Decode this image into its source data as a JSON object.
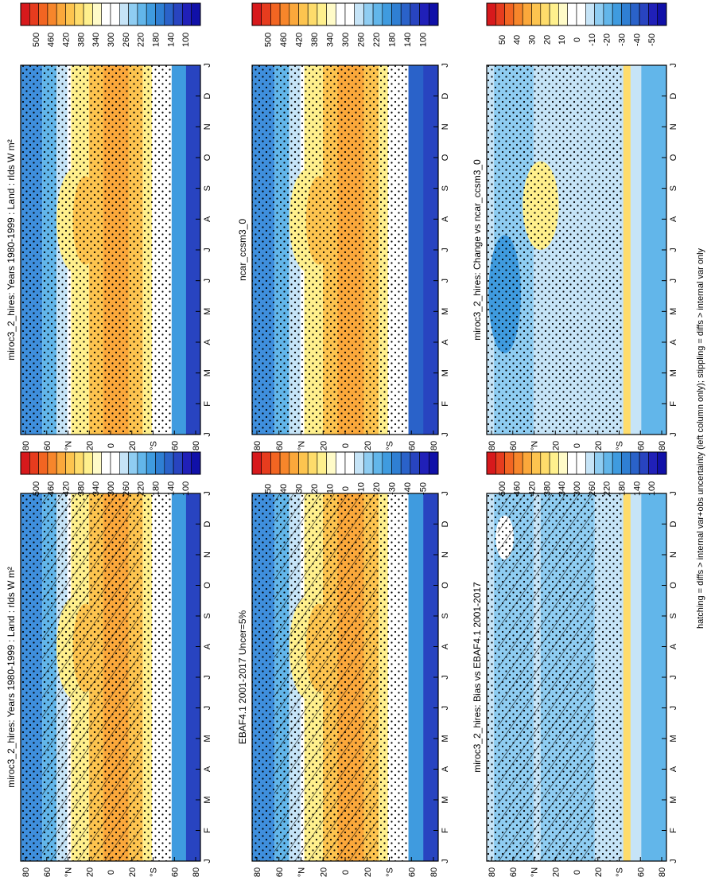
{
  "footer": "hatching = diffs > internal var+obs uncertainty (left column only); stippling = diffs > internal var only",
  "panels_absolute": {
    "months": [
      "J",
      "F",
      "M",
      "A",
      "M",
      "J",
      "J",
      "A",
      "S",
      "O",
      "N",
      "D",
      "J"
    ],
    "lat_ticks": [
      "80",
      "60",
      "°N",
      "20",
      "0",
      "20",
      "°S",
      "60",
      "80"
    ],
    "colorbar_labels": [
      "500",
      "460",
      "420",
      "380",
      "340",
      "300",
      "260",
      "220",
      "180",
      "140",
      "100"
    ],
    "colorbar_colors": [
      "#d7191c",
      "#e63c1e",
      "#f26522",
      "#f7862b",
      "#fba83b",
      "#fdc44f",
      "#fedc6b",
      "#fff08d",
      "#fffbc8",
      "#ffffff",
      "#ffffff",
      "#c6e4f7",
      "#8fcdf2",
      "#62b6ea",
      "#3f9bdf",
      "#2f7fd3",
      "#2a62c9",
      "#2844c0",
      "#2020b8",
      "#1010a8"
    ]
  },
  "panels_diff": {
    "colorbar_labels": [
      "50",
      "40",
      "30",
      "20",
      "10",
      "0",
      "-10",
      "-20",
      "-30",
      "-40",
      "-50"
    ],
    "colorbar_colors": [
      "#d7191c",
      "#e63c1e",
      "#f26522",
      "#f7862b",
      "#fba83b",
      "#fdc44f",
      "#fedc6b",
      "#fff08d",
      "#fffbc8",
      "#ffffff",
      "#ffffff",
      "#c6e4f7",
      "#8fcdf2",
      "#62b6ea",
      "#3f9bdf",
      "#2f7fd3",
      "#2a62c9",
      "#2844c0",
      "#2020b8",
      "#1010a8"
    ]
  },
  "chart_data": [
    {
      "type": "heatmap",
      "title": "miroc3_2_hires: Years 1980-1999 : Land : rlds W m²",
      "position": "left-top",
      "range": [
        100,
        500
      ],
      "hatching": true,
      "stippling": true
    },
    {
      "type": "heatmap",
      "title": "miroc3_2_hires: Years 1980-1999 : Land : rlds W m²",
      "position": "right-top",
      "range": [
        100,
        500
      ],
      "hatching": false,
      "stippling": true
    },
    {
      "type": "heatmap",
      "title": "EBAF4.1 2001-2017 Uncer=5%",
      "position": "left-middle",
      "range": [
        100,
        500
      ],
      "hatching": true,
      "stippling": true
    },
    {
      "type": "heatmap",
      "title": "ncar_ccsm3_0",
      "position": "right-middle",
      "range": [
        100,
        500
      ],
      "hatching": false,
      "stippling": true
    },
    {
      "type": "heatmap",
      "title": "miroc3_2_hires: Bias vs EBAF4.1 2001-2017",
      "position": "left-bottom",
      "range": [
        -50,
        50
      ],
      "hatching": true,
      "stippling": true
    },
    {
      "type": "heatmap",
      "title": "miroc3_2_hires: Change vs ncar_ccsm3_0",
      "position": "right-bottom",
      "range": [
        -50,
        50
      ],
      "hatching": false,
      "stippling": true
    }
  ]
}
